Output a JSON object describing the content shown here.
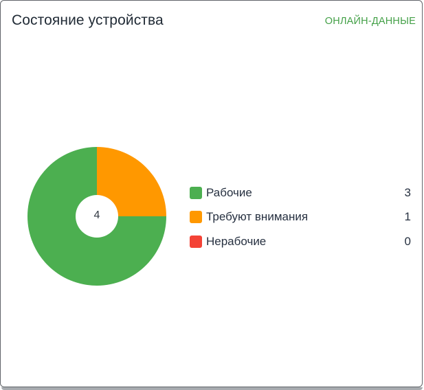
{
  "card": {
    "title": "Состояние устройства",
    "live_link": "ОНЛАЙН-ДАННЫЕ"
  },
  "donut": {
    "center_total": "4"
  },
  "legend": [
    {
      "label": "Рабочие",
      "value": "3",
      "color": "#4caf50"
    },
    {
      "label": "Требуют внимания",
      "value": "1",
      "color": "#ff9800"
    },
    {
      "label": "Нерабочие",
      "value": "0",
      "color": "#f44336"
    }
  ],
  "chart_data": {
    "type": "pie",
    "variant": "donut",
    "title": "Состояние устройства",
    "categories": [
      "Рабочие",
      "Требуют внимания",
      "Нерабочие"
    ],
    "values": [
      3,
      1,
      0
    ],
    "colors": [
      "#4caf50",
      "#ff9800",
      "#f44336"
    ],
    "center_label": "4",
    "legend_position": "right"
  }
}
